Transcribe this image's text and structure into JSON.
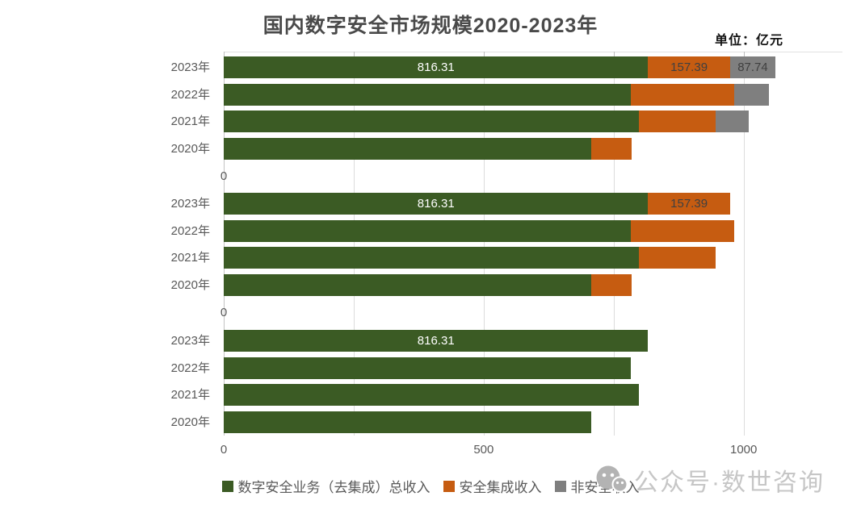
{
  "page": {
    "background": "#ffffff"
  },
  "chart_data": {
    "type": "bar",
    "orientation": "horizontal-stacked",
    "title": "国内数字安全市场规模2020-2023年",
    "unit_label": "单位：亿元",
    "categories": [
      "2023年",
      "2022年",
      "2021年",
      "2020年"
    ],
    "series": [
      {
        "name": "数字安全业务（去集成）总收入",
        "color": "#3B5B24",
        "label_color": "#FFFFFF",
        "values": [
          816.31,
          783,
          798,
          707
        ]
      },
      {
        "name": "安全集成收入",
        "color": "#C65C11",
        "label_color": "#404040",
        "values": [
          157.39,
          199,
          148,
          78
        ]
      },
      {
        "name": "非安全收入",
        "color": "#7F7F7F",
        "label_color": "#404040",
        "values": [
          87.74,
          67,
          64,
          0
        ]
      }
    ],
    "data_label_row": "2023年",
    "labeled_values": [
      "816.31",
      "157.39",
      "87.74"
    ],
    "sections": [
      {
        "series_indexes": [
          0,
          1,
          2
        ],
        "axis_tick_labels": [
          0
        ]
      },
      {
        "series_indexes": [
          0,
          1
        ],
        "axis_tick_labels": [
          0
        ]
      },
      {
        "series_indexes": [
          0
        ],
        "axis_tick_labels": [
          0,
          500,
          1000
        ]
      }
    ],
    "x_gridlines": [
      250,
      500,
      750,
      1000
    ],
    "xlim": [
      0,
      1190
    ],
    "grid": "on",
    "legend_position": "bottom",
    "legend": [
      "数字安全业务（去集成）总收入",
      "安全集成收入",
      "非安全收入"
    ]
  },
  "watermark": {
    "text": "公众号·数世咨询",
    "icon": "wechat-official-account-icon"
  },
  "colors": {
    "grid": "#DCDCDC",
    "axis": "#C2C2C2",
    "text": "#595959",
    "title": "#4A4A4A",
    "data_label_dark": "#404040",
    "data_label_light": "#FFFFFF",
    "watermark": "#C6C6C6"
  }
}
